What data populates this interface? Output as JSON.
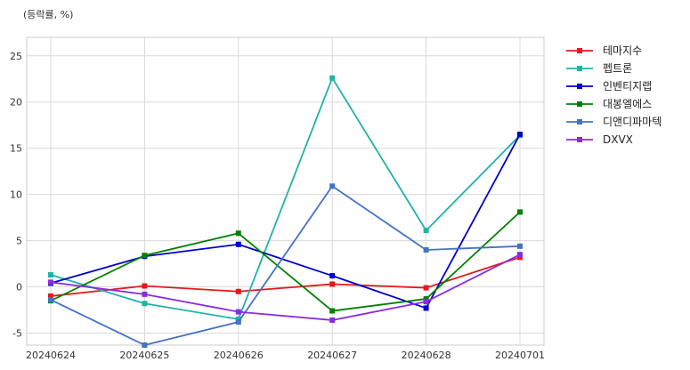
{
  "chart_data": {
    "type": "line",
    "title": "",
    "unit_label": "(등락률, %)",
    "xlabel": "",
    "ylabel": "",
    "categories": [
      "20240624",
      "20240625",
      "20240626",
      "20240627",
      "20240628",
      "20240701"
    ],
    "ylim": [
      -6.3,
      27.0
    ],
    "yticks": [
      -5,
      0,
      5,
      10,
      15,
      20,
      25
    ],
    "grid": true,
    "legend_position": "outside-top-right",
    "series": [
      {
        "name": "테마지수",
        "color": "#e31a1c",
        "values": [
          -1.0,
          0.1,
          -0.5,
          0.3,
          -0.1,
          3.2
        ]
      },
      {
        "name": "펩트론",
        "color": "#20b2aa",
        "values": [
          1.3,
          -1.8,
          -3.5,
          22.6,
          6.1,
          16.4
        ]
      },
      {
        "name": "인벤티지랩",
        "color": "#0000cd",
        "values": [
          0.4,
          3.3,
          4.6,
          1.2,
          -2.3,
          16.5
        ]
      },
      {
        "name": "대봉엘에스",
        "color": "#008000",
        "values": [
          -1.5,
          3.4,
          5.8,
          -2.6,
          -1.3,
          8.1
        ]
      },
      {
        "name": "디앤디파마텍",
        "color": "#4472c4",
        "values": [
          -1.4,
          -6.3,
          -3.8,
          10.9,
          4.0,
          4.4
        ]
      },
      {
        "name": "DXVX",
        "color": "#8a2be2",
        "values": [
          0.5,
          -0.8,
          -2.7,
          -3.6,
          -1.6,
          3.5
        ]
      }
    ]
  }
}
